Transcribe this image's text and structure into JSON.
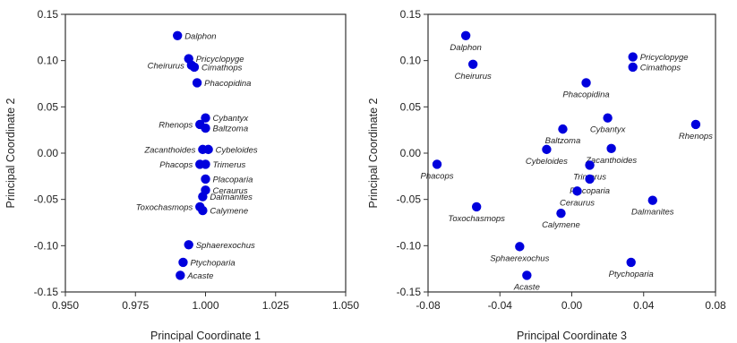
{
  "chart_data": [
    {
      "type": "scatter",
      "xlabel": "Principal Coordinate 1",
      "ylabel": "Principal Coordinate 2",
      "xlim": [
        0.95,
        1.05
      ],
      "ylim": [
        -0.15,
        0.15
      ],
      "xticks": [
        "0.950",
        "0.975",
        "1.000",
        "1.025",
        "1.050"
      ],
      "yticks": [
        "0.15",
        "0.10",
        "0.05",
        "0.00",
        "-0.05",
        "-0.10",
        "-0.15"
      ],
      "xtick_values": [
        0.95,
        0.975,
        1.0,
        1.025,
        1.05
      ],
      "ytick_values": [
        0.15,
        0.1,
        0.05,
        0.0,
        -0.05,
        -0.1,
        -0.15
      ],
      "marker_color": "#0000dd",
      "points": [
        {
          "label": "Dalphon",
          "x": 0.99,
          "y": 0.127,
          "pos": "right"
        },
        {
          "label": "Pricyclopyge",
          "x": 0.994,
          "y": 0.102,
          "pos": "right"
        },
        {
          "label": "Cheirurus",
          "x": 0.995,
          "y": 0.095,
          "pos": "left"
        },
        {
          "label": "Cimathops",
          "x": 0.996,
          "y": 0.093,
          "pos": "right"
        },
        {
          "label": "Phacopidina",
          "x": 0.997,
          "y": 0.076,
          "pos": "right"
        },
        {
          "label": "Cybantyx",
          "x": 1.0,
          "y": 0.038,
          "pos": "right"
        },
        {
          "label": "Rhenops",
          "x": 0.998,
          "y": 0.031,
          "pos": "left"
        },
        {
          "label": "Baltzoma",
          "x": 1.0,
          "y": 0.027,
          "pos": "right"
        },
        {
          "label": "Zacanthoides",
          "x": 0.999,
          "y": 0.004,
          "pos": "left"
        },
        {
          "label": "Cybeloides",
          "x": 1.001,
          "y": 0.004,
          "pos": "right"
        },
        {
          "label": "Phacops",
          "x": 0.998,
          "y": -0.012,
          "pos": "left"
        },
        {
          "label": "Trimerus",
          "x": 1.0,
          "y": -0.012,
          "pos": "right"
        },
        {
          "label": "Placoparia",
          "x": 1.0,
          "y": -0.028,
          "pos": "right"
        },
        {
          "label": "Ceraurus",
          "x": 1.0,
          "y": -0.04,
          "pos": "right"
        },
        {
          "label": "Dalmanites",
          "x": 0.999,
          "y": -0.047,
          "pos": "right"
        },
        {
          "label": "Toxochasmops",
          "x": 0.998,
          "y": -0.058,
          "pos": "left"
        },
        {
          "label": "Calymene",
          "x": 0.999,
          "y": -0.062,
          "pos": "right"
        },
        {
          "label": "Sphaerexochus",
          "x": 0.994,
          "y": -0.099,
          "pos": "right"
        },
        {
          "label": "Ptychoparia",
          "x": 0.992,
          "y": -0.118,
          "pos": "right"
        },
        {
          "label": "Acaste",
          "x": 0.991,
          "y": -0.132,
          "pos": "right"
        }
      ]
    },
    {
      "type": "scatter",
      "xlabel": "Principal Coordinate 3",
      "ylabel": "Principal Coordinate 2",
      "xlim": [
        -0.08,
        0.08
      ],
      "ylim": [
        -0.15,
        0.15
      ],
      "xticks": [
        "-0.08",
        "-0.04",
        "0.00",
        "0.04",
        "0.08"
      ],
      "yticks": [
        "0.15",
        "0.10",
        "0.05",
        "0.00",
        "-0.05",
        "-0.10",
        "-0.15"
      ],
      "xtick_values": [
        -0.08,
        -0.04,
        0.0,
        0.04,
        0.08
      ],
      "ytick_values": [
        0.15,
        0.1,
        0.05,
        0.0,
        -0.05,
        -0.1,
        -0.15
      ],
      "marker_color": "#0000dd",
      "points": [
        {
          "label": "Dalphon",
          "x": -0.059,
          "y": 0.127,
          "pos": "below"
        },
        {
          "label": "Cheirurus",
          "x": -0.055,
          "y": 0.096,
          "pos": "below"
        },
        {
          "label": "Pricyclopyge",
          "x": 0.034,
          "y": 0.104,
          "pos": "right"
        },
        {
          "label": "Cimathops",
          "x": 0.034,
          "y": 0.093,
          "pos": "right"
        },
        {
          "label": "Phacopidina",
          "x": 0.008,
          "y": 0.076,
          "pos": "below"
        },
        {
          "label": "Cybantyx",
          "x": 0.02,
          "y": 0.038,
          "pos": "below"
        },
        {
          "label": "Rhenops",
          "x": 0.069,
          "y": 0.031,
          "pos": "below"
        },
        {
          "label": "Baltzoma",
          "x": -0.005,
          "y": 0.026,
          "pos": "below"
        },
        {
          "label": "Zacanthoides",
          "x": 0.022,
          "y": 0.005,
          "pos": "below"
        },
        {
          "label": "Cybeloides",
          "x": -0.014,
          "y": 0.004,
          "pos": "below"
        },
        {
          "label": "Phacops",
          "x": -0.075,
          "y": -0.012,
          "pos": "below"
        },
        {
          "label": "Trimerus",
          "x": 0.01,
          "y": -0.013,
          "pos": "below"
        },
        {
          "label": "Placoparia",
          "x": 0.01,
          "y": -0.028,
          "pos": "below"
        },
        {
          "label": "Ceraurus",
          "x": 0.003,
          "y": -0.041,
          "pos": "below"
        },
        {
          "label": "Dalmanites",
          "x": 0.045,
          "y": -0.051,
          "pos": "below"
        },
        {
          "label": "Toxochasmops",
          "x": -0.053,
          "y": -0.058,
          "pos": "below"
        },
        {
          "label": "Calymene",
          "x": -0.006,
          "y": -0.065,
          "pos": "below"
        },
        {
          "label": "Sphaerexochus",
          "x": -0.029,
          "y": -0.101,
          "pos": "below"
        },
        {
          "label": "Ptychoparia",
          "x": 0.033,
          "y": -0.118,
          "pos": "below"
        },
        {
          "label": "Acaste",
          "x": -0.025,
          "y": -0.132,
          "pos": "below"
        }
      ]
    }
  ]
}
